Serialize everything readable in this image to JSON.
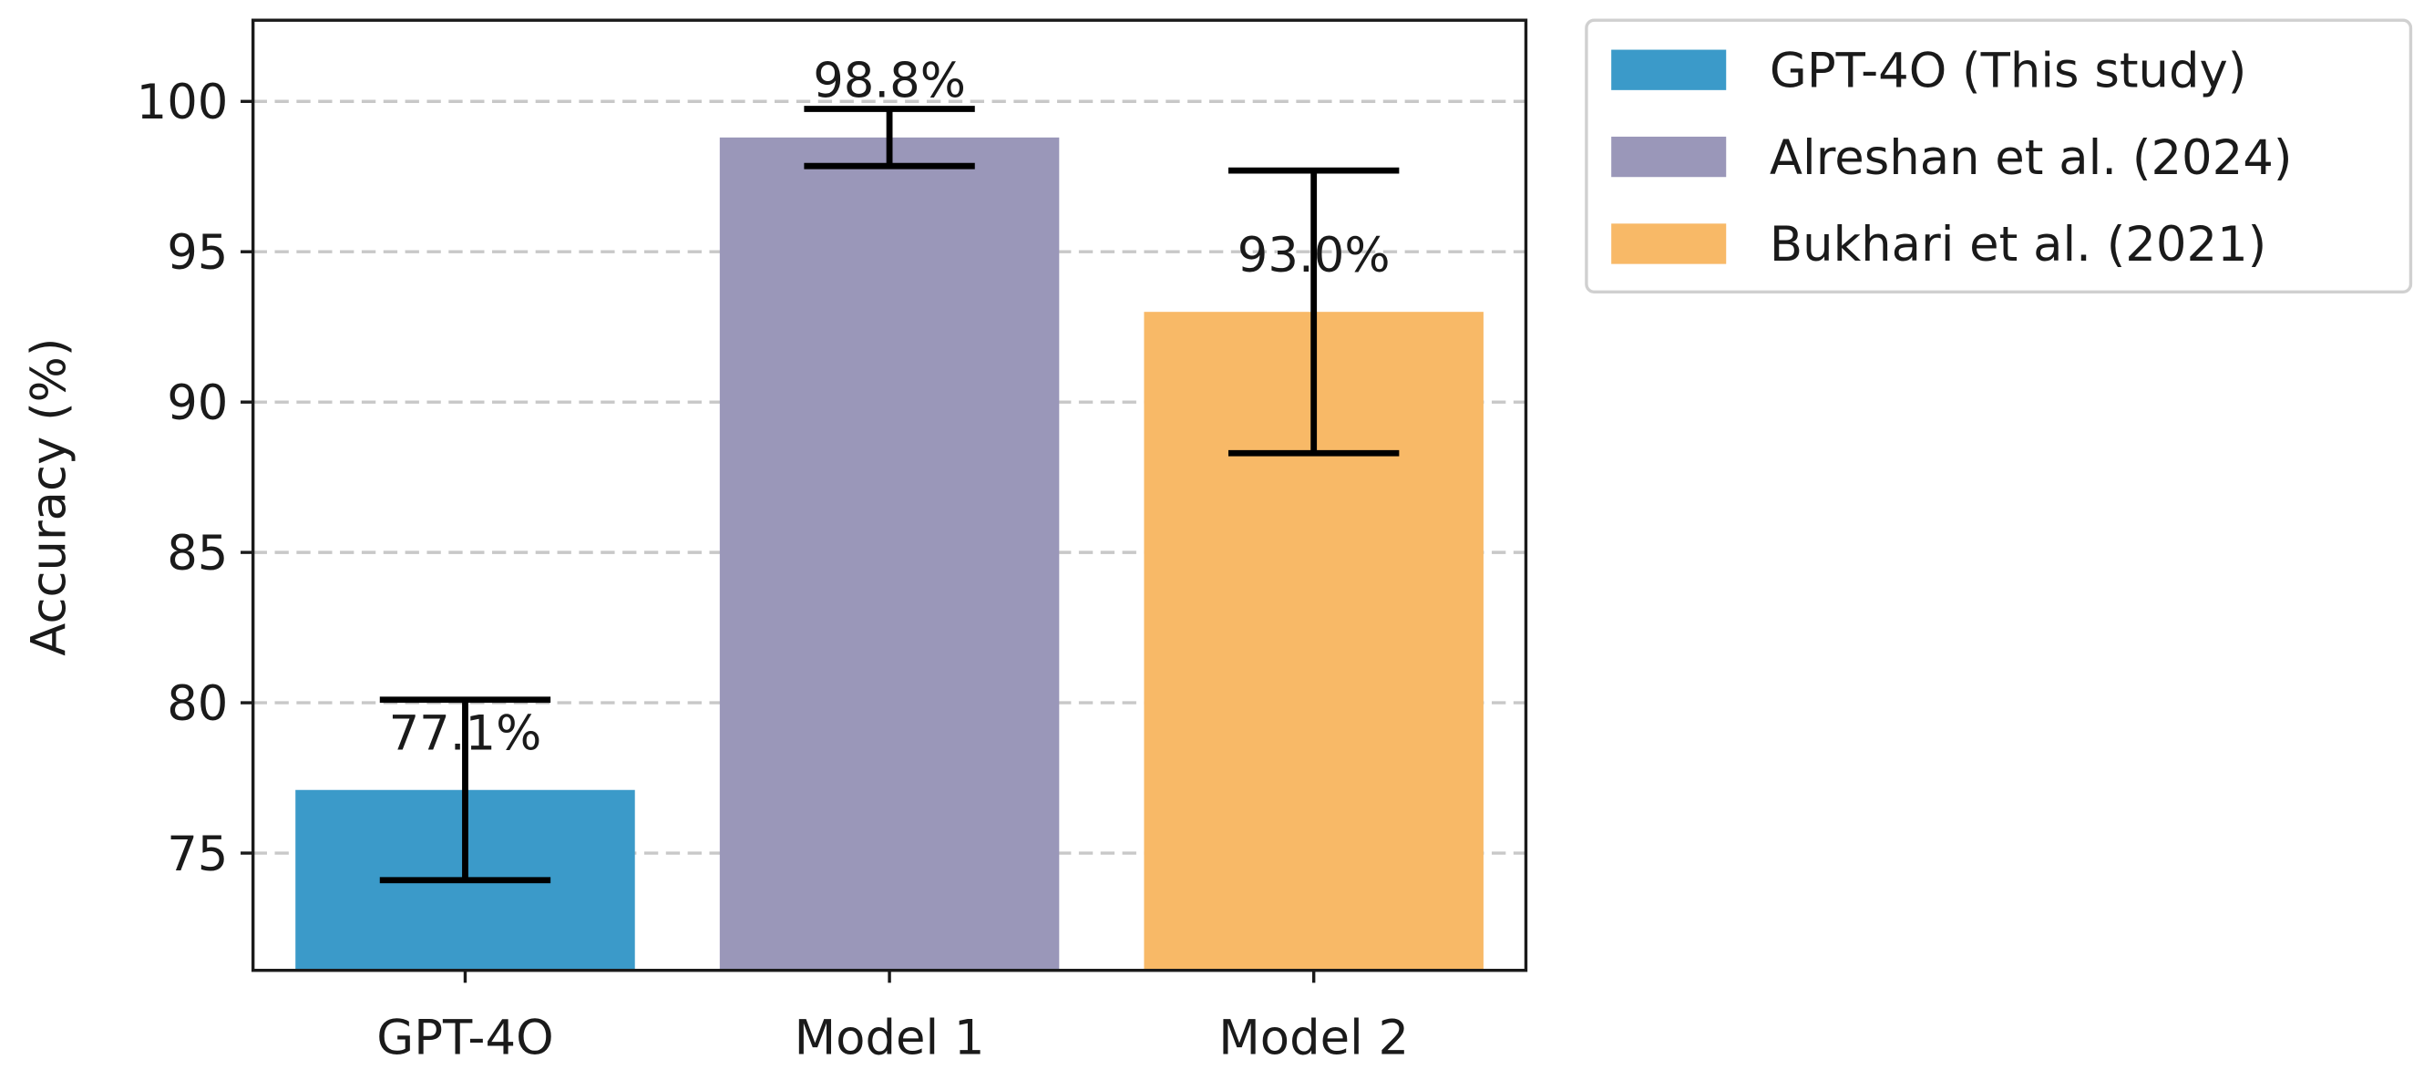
{
  "chart_data": {
    "type": "bar",
    "y_label": "Accuracy (%)",
    "categories": [
      "GPT-4O",
      "Model 1",
      "Model 2"
    ],
    "values": [
      77.1,
      98.8,
      93.0
    ],
    "value_labels": [
      "77.1%",
      "98.8%",
      "93.0%"
    ],
    "errors": [
      3.0,
      0.95,
      4.7
    ],
    "colors": [
      "#3b9ac9",
      "#9a97b9",
      "#f8b967"
    ],
    "legend": [
      "GPT-4O (This study)",
      "Alreshan et al. (2024)",
      "Bukhari et al. (2021)"
    ],
    "legend_position": "outside upper right",
    "ylim": [
      71.1,
      102.7
    ],
    "yticks": [
      75,
      80,
      85,
      90,
      95,
      100
    ],
    "grid": true
  }
}
